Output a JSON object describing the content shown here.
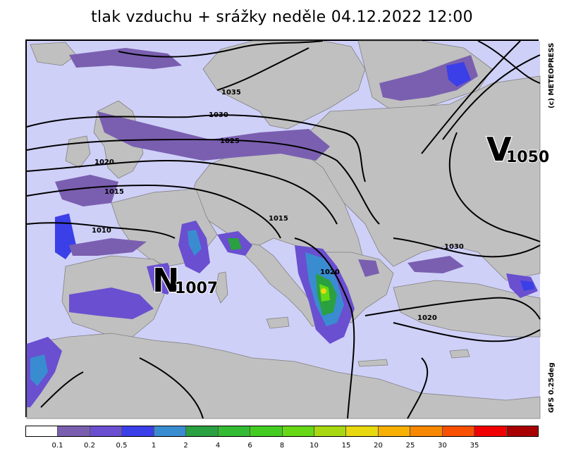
{
  "title": "tlak vzduchu + srážky  neděle 04.12.2022 12:00",
  "credit": "(c)  METEOPRESS",
  "model": "GFS  0.25deg",
  "isobars": [
    "1035",
    "1030",
    "1025",
    "1020",
    "1015",
    "1010",
    "1015",
    "1020",
    "1030",
    "1020"
  ],
  "pressure_centers": [
    {
      "letter": "N",
      "value": "1007",
      "type": "low"
    },
    {
      "letter": "V",
      "value": "1050",
      "type": "high"
    }
  ],
  "legend": {
    "colors": [
      "#ffffff",
      "#7a5fb0",
      "#6a4fd0",
      "#3b3fe8",
      "#3a8cd0",
      "#2aa040",
      "#33bb33",
      "#44cc22",
      "#66d816",
      "#a8d810",
      "#e8d810",
      "#f8b000",
      "#f88800",
      "#f85000",
      "#f00000",
      "#a80000"
    ],
    "labels": [
      "0.1",
      "0.2",
      "0.5",
      "1",
      "2",
      "4",
      "6",
      "8",
      "10",
      "15",
      "20",
      "25",
      "30",
      "35"
    ]
  }
}
